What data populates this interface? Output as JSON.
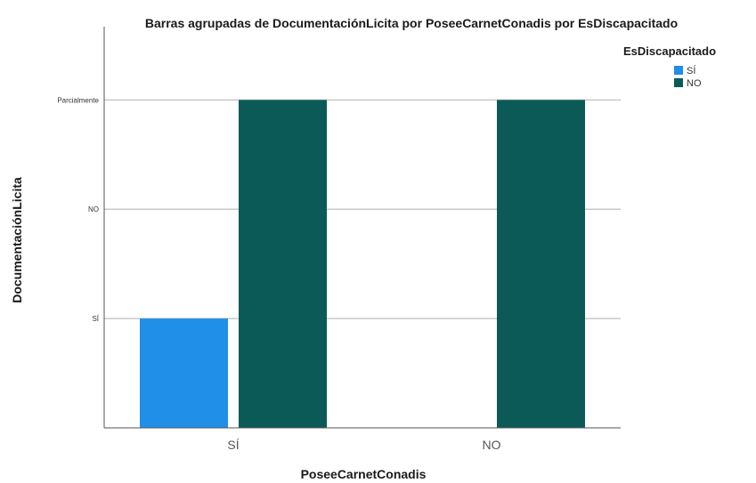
{
  "chart_data": {
    "type": "bar",
    "title": "Barras agrupadas de DocumentaciónLicita por PoseeCarnetConadis por EsDiscapacitado",
    "xlabel": "PoseeCarnetConadis",
    "ylabel": "DocumentaciónLicita",
    "categories": [
      "SÍ",
      "NO"
    ],
    "y_ticks": [
      "SÍ",
      "NO",
      "Parcialmente"
    ],
    "ylim": [
      0,
      3.67
    ],
    "grid": true,
    "legend_title": "EsDiscapacitado",
    "legend_position": "top-right",
    "series": [
      {
        "name": "SÍ",
        "color": "#1f8fe8",
        "values": [
          1,
          null
        ]
      },
      {
        "name": "NO",
        "color": "#0b5a57",
        "values": [
          3,
          3
        ]
      }
    ]
  }
}
